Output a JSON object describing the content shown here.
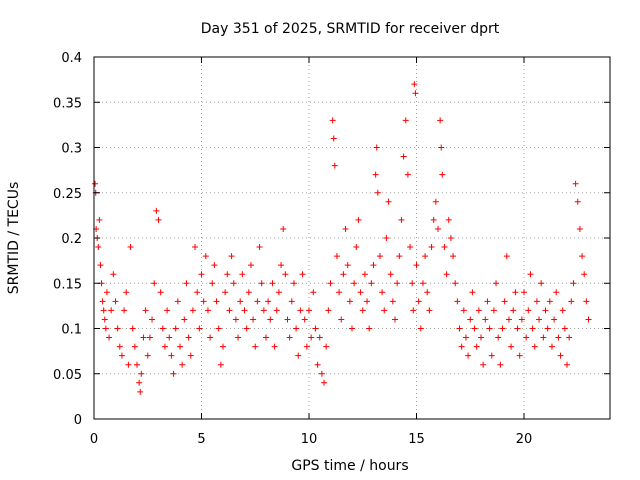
{
  "chart_data": {
    "type": "scatter",
    "title": "Day 351 of 2025, SRMTID for receiver dprt",
    "xlabel": "GPS time / hours",
    "ylabel": "SRMTID / TECUs",
    "xlim": [
      0,
      24
    ],
    "ylim": [
      0,
      0.4
    ],
    "x_ticks": [
      0,
      5,
      10,
      15,
      20
    ],
    "x_tick_labels": [
      "0",
      "5",
      "10",
      "15",
      "20"
    ],
    "y_ticks": [
      0,
      0.05,
      0.1,
      0.15,
      0.2,
      0.25,
      0.3,
      0.35,
      0.4
    ],
    "y_tick_labels": [
      "0",
      "0.05",
      "0.1",
      "0.15",
      "0.2",
      "0.25",
      "0.3",
      "0.35",
      "0.4"
    ],
    "grid": true,
    "marker": "+",
    "color": "#ff0000",
    "series": [
      {
        "name": "SRMTID",
        "points": [
          [
            0.05,
            0.26
          ],
          [
            0.08,
            0.25
          ],
          [
            0.1,
            0.21
          ],
          [
            0.15,
            0.2
          ],
          [
            0.2,
            0.19
          ],
          [
            0.25,
            0.22
          ],
          [
            0.3,
            0.17
          ],
          [
            0.35,
            0.15
          ],
          [
            0.4,
            0.13
          ],
          [
            0.45,
            0.12
          ],
          [
            0.5,
            0.11
          ],
          [
            0.55,
            0.1
          ],
          [
            0.6,
            0.14
          ],
          [
            0.7,
            0.09
          ],
          [
            0.8,
            0.12
          ],
          [
            0.9,
            0.16
          ],
          [
            1.0,
            0.13
          ],
          [
            1.1,
            0.1
          ],
          [
            1.2,
            0.08
          ],
          [
            1.3,
            0.07
          ],
          [
            1.4,
            0.12
          ],
          [
            1.5,
            0.14
          ],
          [
            1.6,
            0.06
          ],
          [
            1.7,
            0.19
          ],
          [
            1.8,
            0.1
          ],
          [
            1.9,
            0.08
          ],
          [
            2.0,
            0.06
          ],
          [
            2.1,
            0.04
          ],
          [
            2.15,
            0.03
          ],
          [
            2.2,
            0.05
          ],
          [
            2.3,
            0.09
          ],
          [
            2.4,
            0.12
          ],
          [
            2.5,
            0.07
          ],
          [
            2.6,
            0.09
          ],
          [
            2.7,
            0.11
          ],
          [
            2.8,
            0.15
          ],
          [
            2.9,
            0.23
          ],
          [
            3.0,
            0.22
          ],
          [
            3.1,
            0.14
          ],
          [
            3.2,
            0.1
          ],
          [
            3.3,
            0.08
          ],
          [
            3.4,
            0.12
          ],
          [
            3.5,
            0.09
          ],
          [
            3.6,
            0.07
          ],
          [
            3.7,
            0.05
          ],
          [
            3.8,
            0.1
          ],
          [
            3.9,
            0.13
          ],
          [
            4.0,
            0.08
          ],
          [
            4.1,
            0.06
          ],
          [
            4.2,
            0.11
          ],
          [
            4.3,
            0.15
          ],
          [
            4.4,
            0.09
          ],
          [
            4.5,
            0.07
          ],
          [
            4.6,
            0.12
          ],
          [
            4.7,
            0.19
          ],
          [
            4.8,
            0.14
          ],
          [
            4.9,
            0.1
          ],
          [
            5.0,
            0.16
          ],
          [
            5.1,
            0.13
          ],
          [
            5.2,
            0.18
          ],
          [
            5.3,
            0.12
          ],
          [
            5.4,
            0.09
          ],
          [
            5.5,
            0.15
          ],
          [
            5.6,
            0.17
          ],
          [
            5.7,
            0.13
          ],
          [
            5.8,
            0.1
          ],
          [
            5.9,
            0.06
          ],
          [
            6.0,
            0.08
          ],
          [
            6.1,
            0.14
          ],
          [
            6.2,
            0.16
          ],
          [
            6.3,
            0.12
          ],
          [
            6.4,
            0.18
          ],
          [
            6.5,
            0.15
          ],
          [
            6.6,
            0.11
          ],
          [
            6.7,
            0.09
          ],
          [
            6.8,
            0.13
          ],
          [
            6.9,
            0.16
          ],
          [
            7.0,
            0.12
          ],
          [
            7.1,
            0.1
          ],
          [
            7.2,
            0.14
          ],
          [
            7.3,
            0.17
          ],
          [
            7.4,
            0.11
          ],
          [
            7.5,
            0.08
          ],
          [
            7.6,
            0.13
          ],
          [
            7.7,
            0.19
          ],
          [
            7.8,
            0.15
          ],
          [
            7.9,
            0.12
          ],
          [
            8.0,
            0.09
          ],
          [
            8.1,
            0.13
          ],
          [
            8.2,
            0.11
          ],
          [
            8.3,
            0.15
          ],
          [
            8.4,
            0.08
          ],
          [
            8.5,
            0.12
          ],
          [
            8.6,
            0.14
          ],
          [
            8.7,
            0.17
          ],
          [
            8.8,
            0.21
          ],
          [
            8.9,
            0.16
          ],
          [
            9.0,
            0.11
          ],
          [
            9.1,
            0.09
          ],
          [
            9.2,
            0.13
          ],
          [
            9.3,
            0.15
          ],
          [
            9.4,
            0.1
          ],
          [
            9.5,
            0.07
          ],
          [
            9.6,
            0.12
          ],
          [
            9.7,
            0.16
          ],
          [
            9.8,
            0.11
          ],
          [
            9.9,
            0.08
          ],
          [
            10.0,
            0.12
          ],
          [
            10.1,
            0.09
          ],
          [
            10.2,
            0.14
          ],
          [
            10.3,
            0.1
          ],
          [
            10.4,
            0.06
          ],
          [
            10.5,
            0.09
          ],
          [
            10.6,
            0.05
          ],
          [
            10.7,
            0.04
          ],
          [
            10.8,
            0.08
          ],
          [
            10.9,
            0.12
          ],
          [
            11.0,
            0.15
          ],
          [
            11.1,
            0.33
          ],
          [
            11.15,
            0.31
          ],
          [
            11.2,
            0.28
          ],
          [
            11.3,
            0.18
          ],
          [
            11.4,
            0.14
          ],
          [
            11.5,
            0.11
          ],
          [
            11.6,
            0.16
          ],
          [
            11.7,
            0.21
          ],
          [
            11.8,
            0.17
          ],
          [
            11.9,
            0.13
          ],
          [
            12.0,
            0.1
          ],
          [
            12.1,
            0.15
          ],
          [
            12.2,
            0.19
          ],
          [
            12.3,
            0.22
          ],
          [
            12.4,
            0.14
          ],
          [
            12.5,
            0.12
          ],
          [
            12.6,
            0.16
          ],
          [
            12.7,
            0.13
          ],
          [
            12.8,
            0.1
          ],
          [
            12.9,
            0.15
          ],
          [
            13.0,
            0.17
          ],
          [
            13.1,
            0.27
          ],
          [
            13.15,
            0.3
          ],
          [
            13.2,
            0.25
          ],
          [
            13.3,
            0.18
          ],
          [
            13.4,
            0.14
          ],
          [
            13.5,
            0.12
          ],
          [
            13.6,
            0.2
          ],
          [
            13.7,
            0.24
          ],
          [
            13.8,
            0.16
          ],
          [
            13.9,
            0.13
          ],
          [
            14.0,
            0.11
          ],
          [
            14.1,
            0.15
          ],
          [
            14.2,
            0.18
          ],
          [
            14.3,
            0.22
          ],
          [
            14.4,
            0.29
          ],
          [
            14.5,
            0.33
          ],
          [
            14.6,
            0.27
          ],
          [
            14.7,
            0.19
          ],
          [
            14.8,
            0.15
          ],
          [
            14.85,
            0.12
          ],
          [
            14.9,
            0.37
          ],
          [
            14.95,
            0.36
          ],
          [
            15.0,
            0.17
          ],
          [
            15.1,
            0.13
          ],
          [
            15.2,
            0.1
          ],
          [
            15.3,
            0.15
          ],
          [
            15.4,
            0.18
          ],
          [
            15.5,
            0.14
          ],
          [
            15.6,
            0.12
          ],
          [
            15.7,
            0.19
          ],
          [
            15.8,
            0.22
          ],
          [
            15.9,
            0.24
          ],
          [
            16.0,
            0.21
          ],
          [
            16.1,
            0.33
          ],
          [
            16.15,
            0.3
          ],
          [
            16.2,
            0.27
          ],
          [
            16.3,
            0.19
          ],
          [
            16.4,
            0.16
          ],
          [
            16.5,
            0.22
          ],
          [
            16.6,
            0.2
          ],
          [
            16.7,
            0.18
          ],
          [
            16.8,
            0.15
          ],
          [
            16.9,
            0.13
          ],
          [
            17.0,
            0.1
          ],
          [
            17.1,
            0.08
          ],
          [
            17.2,
            0.12
          ],
          [
            17.3,
            0.09
          ],
          [
            17.4,
            0.07
          ],
          [
            17.5,
            0.11
          ],
          [
            17.6,
            0.14
          ],
          [
            17.7,
            0.1
          ],
          [
            17.8,
            0.08
          ],
          [
            17.9,
            0.12
          ],
          [
            18.0,
            0.09
          ],
          [
            18.1,
            0.06
          ],
          [
            18.2,
            0.11
          ],
          [
            18.3,
            0.13
          ],
          [
            18.4,
            0.1
          ],
          [
            18.5,
            0.07
          ],
          [
            18.6,
            0.12
          ],
          [
            18.7,
            0.15
          ],
          [
            18.8,
            0.09
          ],
          [
            18.9,
            0.06
          ],
          [
            19.0,
            0.1
          ],
          [
            19.1,
            0.13
          ],
          [
            19.2,
            0.18
          ],
          [
            19.3,
            0.11
          ],
          [
            19.4,
            0.08
          ],
          [
            19.5,
            0.12
          ],
          [
            19.6,
            0.14
          ],
          [
            19.7,
            0.1
          ],
          [
            19.8,
            0.07
          ],
          [
            19.9,
            0.11
          ],
          [
            20.0,
            0.14
          ],
          [
            20.1,
            0.09
          ],
          [
            20.2,
            0.12
          ],
          [
            20.3,
            0.16
          ],
          [
            20.4,
            0.1
          ],
          [
            20.5,
            0.08
          ],
          [
            20.6,
            0.13
          ],
          [
            20.7,
            0.11
          ],
          [
            20.8,
            0.15
          ],
          [
            20.9,
            0.09
          ],
          [
            21.0,
            0.12
          ],
          [
            21.1,
            0.1
          ],
          [
            21.2,
            0.13
          ],
          [
            21.3,
            0.08
          ],
          [
            21.4,
            0.11
          ],
          [
            21.5,
            0.14
          ],
          [
            21.6,
            0.09
          ],
          [
            21.7,
            0.07
          ],
          [
            21.8,
            0.12
          ],
          [
            21.9,
            0.1
          ],
          [
            22.0,
            0.06
          ],
          [
            22.1,
            0.09
          ],
          [
            22.2,
            0.13
          ],
          [
            22.3,
            0.15
          ],
          [
            22.4,
            0.26
          ],
          [
            22.5,
            0.24
          ],
          [
            22.6,
            0.21
          ],
          [
            22.7,
            0.18
          ],
          [
            22.8,
            0.16
          ],
          [
            22.9,
            0.13
          ],
          [
            23.0,
            0.11
          ]
        ]
      }
    ]
  }
}
